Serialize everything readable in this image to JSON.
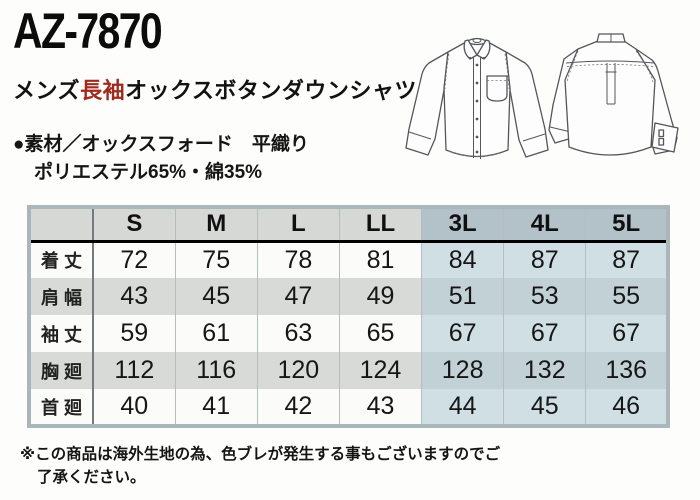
{
  "product": {
    "code": "AZ-7870",
    "name_prefix": "メンズ",
    "name_highlight": "長袖",
    "name_suffix": "オックスボタンダウンシャツ",
    "material_line1": "●素材／オックスフォード　平織り",
    "material_line2": "ポリエステル65%・綿35%"
  },
  "icons": {
    "front_shirt": "long-sleeve-shirt-front-view",
    "back_shirt": "long-sleeve-shirt-back-view"
  },
  "size_table": {
    "columns": [
      "S",
      "M",
      "L",
      "LL",
      "3L",
      "4L",
      "5L"
    ],
    "big_col_start": 4,
    "rows": [
      {
        "label": "着 丈",
        "values": [
          72,
          75,
          78,
          81,
          84,
          87,
          87
        ]
      },
      {
        "label": "肩 幅",
        "values": [
          43,
          45,
          47,
          49,
          51,
          53,
          55
        ]
      },
      {
        "label": "袖 丈",
        "values": [
          59,
          61,
          63,
          65,
          67,
          67,
          67
        ]
      },
      {
        "label": "胸 廻",
        "values": [
          112,
          116,
          120,
          124,
          128,
          132,
          136
        ]
      },
      {
        "label": "首 廻",
        "values": [
          40,
          41,
          42,
          43,
          44,
          45,
          46
        ]
      }
    ]
  },
  "footer": {
    "note_line1": "※この商品は海外生地の為、色ブレが発生する事もございますのでご",
    "note_line2": "了承ください。"
  },
  "colors": {
    "accent_red": "#9e2b1e",
    "header_gray": "#d5d8d4",
    "header_blue": "#b3c1c8",
    "row_white": "#fbfbf9",
    "row_gray": "#d7dad6",
    "row_blue_light": "#cfdfe4",
    "row_blue_gray": "#c2d1d6",
    "table_border": "#a9b6ba"
  }
}
